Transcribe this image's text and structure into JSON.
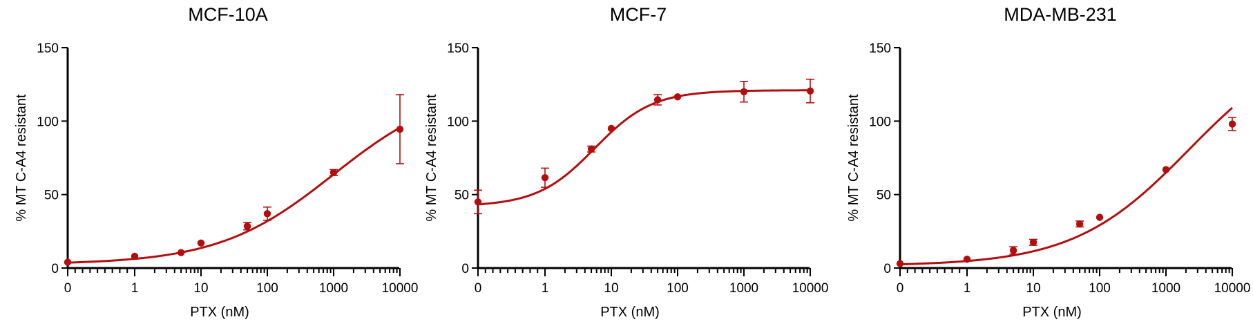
{
  "chart_data": [
    {
      "type": "scatter",
      "title": "MCF-10A",
      "xlabel": "PTX (nM)",
      "ylabel": "% MT C-A4 resistant",
      "x_scale": "log",
      "x_ticks": [
        "0",
        "1",
        "10",
        "100",
        "1000",
        "10000"
      ],
      "y_ticks": [
        "0",
        "50",
        "100",
        "150"
      ],
      "ylim": [
        0,
        150
      ],
      "grid": false,
      "color": "#b30d0d",
      "points": [
        {
          "x": 0,
          "y": 4,
          "err": 0
        },
        {
          "x": 1,
          "y": 8,
          "err": 0
        },
        {
          "x": 5,
          "y": 10.5,
          "err": 0
        },
        {
          "x": 10,
          "y": 17,
          "err": 0
        },
        {
          "x": 50,
          "y": 28.5,
          "err": 2.5
        },
        {
          "x": 100,
          "y": 37,
          "err": 4.5
        },
        {
          "x": 1000,
          "y": 65,
          "err": 2
        },
        {
          "x": 10000,
          "y": 94.5,
          "err": 23.5
        }
      ],
      "fit": {
        "bottom": 2.5,
        "top": 125,
        "logEC50": 3.0,
        "hill": 0.5
      }
    },
    {
      "type": "scatter",
      "title": "MCF-7",
      "xlabel": "PTX (nM)",
      "ylabel": "% MT C-A4 resistant",
      "x_scale": "log",
      "x_ticks": [
        "0",
        "1",
        "10",
        "100",
        "1000",
        "10000"
      ],
      "y_ticks": [
        "0",
        "50",
        "100",
        "150"
      ],
      "ylim": [
        0,
        150
      ],
      "grid": false,
      "color": "#b30d0d",
      "points": [
        {
          "x": 0,
          "y": 45,
          "err": 8
        },
        {
          "x": 1,
          "y": 61.5,
          "err": 6.5
        },
        {
          "x": 5,
          "y": 81,
          "err": 2
        },
        {
          "x": 10,
          "y": 95,
          "err": 0
        },
        {
          "x": 50,
          "y": 114.5,
          "err": 3.5
        },
        {
          "x": 100,
          "y": 116.5,
          "err": 0
        },
        {
          "x": 1000,
          "y": 120,
          "err": 7
        },
        {
          "x": 10000,
          "y": 120.5,
          "err": 8
        }
      ],
      "fit": {
        "bottom": 42,
        "top": 121,
        "logEC50": 0.75,
        "hill": 1.0
      }
    },
    {
      "type": "scatter",
      "title": "MDA-MB-231",
      "xlabel": "PTX (nM)",
      "ylabel": "% MT C-A4 resistant",
      "x_scale": "log",
      "x_ticks": [
        "0",
        "1",
        "10",
        "100",
        "1000",
        "10000"
      ],
      "y_ticks": [
        "0",
        "50",
        "100",
        "150"
      ],
      "ylim": [
        0,
        150
      ],
      "grid": false,
      "color": "#b30d0d",
      "points": [
        {
          "x": 0,
          "y": 3,
          "err": 0
        },
        {
          "x": 1,
          "y": 6,
          "err": 0
        },
        {
          "x": 5,
          "y": 12,
          "err": 2.5
        },
        {
          "x": 10,
          "y": 17.5,
          "err": 2
        },
        {
          "x": 50,
          "y": 30,
          "err": 2
        },
        {
          "x": 100,
          "y": 34.5,
          "err": 0
        },
        {
          "x": 1000,
          "y": 67,
          "err": 0
        },
        {
          "x": 10000,
          "y": 98,
          "err": 4.5
        }
      ],
      "fit": {
        "bottom": 1.5,
        "top": 160,
        "logEC50": 3.35,
        "hill": 0.5
      }
    }
  ]
}
